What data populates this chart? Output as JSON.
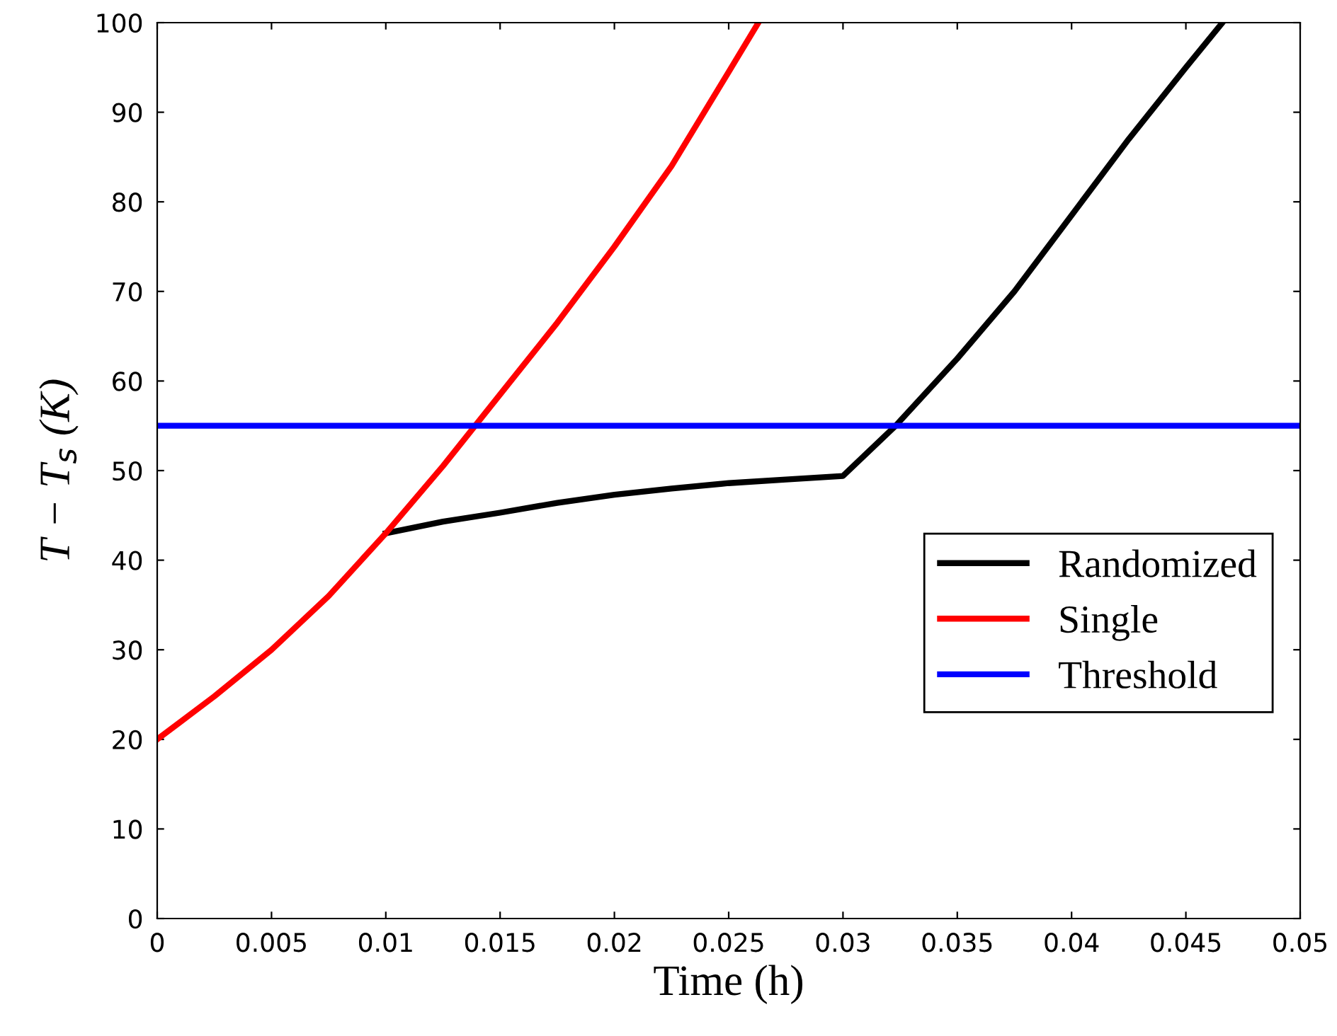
{
  "chart_data": {
    "type": "line",
    "xlabel": "Time (h)",
    "ylabel": "T − T$_{s}$ (K)",
    "series": [
      {
        "name": "Randomized",
        "color": "#000000",
        "x": [
          0.01,
          0.0125,
          0.015,
          0.0175,
          0.02,
          0.0225,
          0.025,
          0.0275,
          0.03,
          0.0323,
          0.035,
          0.0375,
          0.04,
          0.0425,
          0.045,
          0.0466
        ],
        "values": [
          43,
          44.3,
          45.3,
          46.4,
          47.3,
          48,
          48.6,
          49,
          49.4,
          55,
          62.5,
          70,
          78.5,
          87,
          95,
          100
        ]
      },
      {
        "name": "Single",
        "color": "#ff0000",
        "x": [
          0,
          0.0025,
          0.005,
          0.0075,
          0.01,
          0.0125,
          0.015,
          0.0175,
          0.02,
          0.0225,
          0.025,
          0.0263
        ],
        "values": [
          20,
          24.8,
          30,
          36,
          43,
          50.5,
          58.5,
          66.5,
          75,
          84,
          94.5,
          100
        ]
      },
      {
        "name": "Threshold",
        "color": "#0000ff",
        "x": [
          0,
          0.05
        ],
        "values": [
          55,
          55
        ]
      }
    ],
    "xlim": [
      0,
      0.05
    ],
    "xticks": [
      0,
      0.005,
      0.01,
      0.015,
      0.02,
      0.025,
      0.03,
      0.035,
      0.04,
      0.045,
      0.05
    ],
    "ylim": [
      0,
      100
    ],
    "yticks": [
      0,
      10,
      20,
      30,
      40,
      50,
      60,
      70,
      80,
      90,
      100
    ],
    "grid": false,
    "legend": "right",
    "line_style": "solid",
    "marker": "none"
  }
}
